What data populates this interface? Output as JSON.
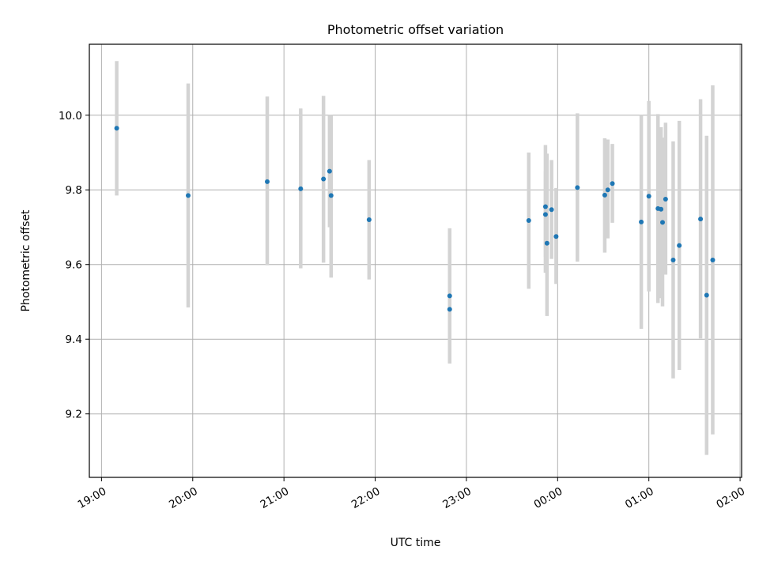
{
  "chart_data": {
    "type": "scatter",
    "title": "Photometric offset variation",
    "xlabel": "UTC time",
    "ylabel": "Photometric offset",
    "grid": true,
    "xlim": [
      "2000-01-01 18:52",
      "2000-01-02 02:01"
    ],
    "ylim": [
      9.03,
      10.19
    ],
    "x_tick_values": [
      "2000-01-01 19:00",
      "2000-01-01 20:00",
      "2000-01-01 21:00",
      "2000-01-01 22:00",
      "2000-01-01 23:00",
      "2000-01-02 00:00",
      "2000-01-02 01:00",
      "2000-01-02 02:00"
    ],
    "x_tick_labels": [
      "19:00",
      "20:00",
      "21:00",
      "22:00",
      "23:00",
      "00:00",
      "01:00",
      "02:00"
    ],
    "y_ticks": [
      9.2,
      9.4,
      9.6,
      9.8,
      10.0
    ],
    "y_tick_labels": [
      "9.2",
      "9.4",
      "9.6",
      "9.8",
      "10.0"
    ],
    "colors": {
      "point": "#1f77b4",
      "errorbar": "#d3d3d3",
      "grid": "#b0b0b0",
      "axis": "#000000"
    },
    "points": [
      {
        "t": "2000-01-01 19:10",
        "y": 9.965,
        "lo": 9.785,
        "hi": 10.145
      },
      {
        "t": "2000-01-01 19:57",
        "y": 9.785,
        "lo": 9.485,
        "hi": 10.085
      },
      {
        "t": "2000-01-01 20:49",
        "y": 9.822,
        "lo": 9.598,
        "hi": 10.05
      },
      {
        "t": "2000-01-01 21:11",
        "y": 9.803,
        "lo": 9.59,
        "hi": 10.018
      },
      {
        "t": "2000-01-01 21:26",
        "y": 9.829,
        "lo": 9.605,
        "hi": 10.052
      },
      {
        "t": "2000-01-01 21:30",
        "y": 9.85,
        "lo": 9.7,
        "hi": 10.0
      },
      {
        "t": "2000-01-01 21:31",
        "y": 9.785,
        "lo": 9.565,
        "hi": 10.0
      },
      {
        "t": "2000-01-01 21:56",
        "y": 9.72,
        "lo": 9.56,
        "hi": 9.88
      },
      {
        "t": "2000-01-01 22:49",
        "y": 9.516,
        "lo": 9.335,
        "hi": 9.697
      },
      {
        "t": "2000-01-01 22:49",
        "y": 9.48,
        "lo": 9.335,
        "hi": 9.697
      },
      {
        "t": "2000-01-01 23:41",
        "y": 9.718,
        "lo": 9.535,
        "hi": 9.9
      },
      {
        "t": "2000-01-01 23:52",
        "y": 9.755,
        "lo": 9.578,
        "hi": 9.92
      },
      {
        "t": "2000-01-01 23:52",
        "y": 9.734,
        "lo": 9.62,
        "hi": 9.85
      },
      {
        "t": "2000-01-01 23:53",
        "y": 9.657,
        "lo": 9.462,
        "hi": 9.897
      },
      {
        "t": "2000-01-01 23:56",
        "y": 9.747,
        "lo": 9.615,
        "hi": 9.88
      },
      {
        "t": "2000-01-01 23:59",
        "y": 9.675,
        "lo": 9.548,
        "hi": 9.805
      },
      {
        "t": "2000-01-02 00:13",
        "y": 9.806,
        "lo": 9.608,
        "hi": 10.005
      },
      {
        "t": "2000-01-02 00:31",
        "y": 9.786,
        "lo": 9.632,
        "hi": 9.938
      },
      {
        "t": "2000-01-02 00:33",
        "y": 9.8,
        "lo": 9.67,
        "hi": 9.935
      },
      {
        "t": "2000-01-02 00:36",
        "y": 9.817,
        "lo": 9.712,
        "hi": 9.923
      },
      {
        "t": "2000-01-02 00:55",
        "y": 9.714,
        "lo": 9.428,
        "hi": 10.0
      },
      {
        "t": "2000-01-02 01:00",
        "y": 9.783,
        "lo": 9.528,
        "hi": 10.038
      },
      {
        "t": "2000-01-02 01:06",
        "y": 9.75,
        "lo": 9.497,
        "hi": 10.003
      },
      {
        "t": "2000-01-02 01:08",
        "y": 9.748,
        "lo": 9.51,
        "hi": 9.968
      },
      {
        "t": "2000-01-02 01:09",
        "y": 9.713,
        "lo": 9.488,
        "hi": 9.94
      },
      {
        "t": "2000-01-02 01:11",
        "y": 9.775,
        "lo": 9.573,
        "hi": 9.98
      },
      {
        "t": "2000-01-02 01:16",
        "y": 9.612,
        "lo": 9.295,
        "hi": 9.93
      },
      {
        "t": "2000-01-02 01:20",
        "y": 9.651,
        "lo": 9.318,
        "hi": 9.985
      },
      {
        "t": "2000-01-02 01:34",
        "y": 9.722,
        "lo": 9.402,
        "hi": 10.043
      },
      {
        "t": "2000-01-02 01:38",
        "y": 9.518,
        "lo": 9.09,
        "hi": 9.945
      },
      {
        "t": "2000-01-02 01:42",
        "y": 9.612,
        "lo": 9.145,
        "hi": 10.08
      }
    ]
  }
}
